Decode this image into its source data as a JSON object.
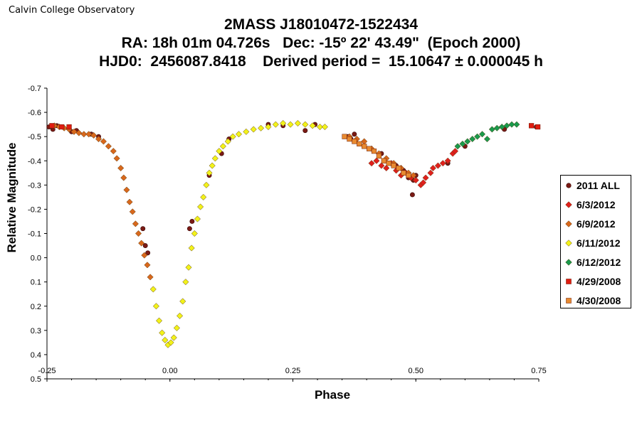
{
  "header": {
    "observatory": "Calvin College Observatory",
    "title_line1": "2MASS J18010472-1522434",
    "title_line2": "RA: 18h 01m 04.726s   Dec: -15º 22' 43.49\"  (Epoch 2000)",
    "title_line3": "HJD0:  2456087.8418    Derived period =  15.10647 ± 0.000045 h"
  },
  "chart_data": {
    "type": "scatter",
    "xlabel": "Phase",
    "ylabel": "Relative Magnitude",
    "xlim": [
      -0.25,
      0.75
    ],
    "ylim": [
      -0.7,
      0.5
    ],
    "y_inverted": true,
    "grid": false,
    "legend_position": "right",
    "x_ticks": [
      "-0.25",
      "0.00",
      "0.25",
      "0.50",
      "0.75"
    ],
    "y_ticks": [
      "-0.7",
      "-0.6",
      "-0.5",
      "-0.4",
      "-0.3",
      "-0.2",
      "-0.1",
      "0.0",
      "0.1",
      "0.2",
      "0.3",
      "0.4",
      "0.5"
    ],
    "series": [
      {
        "name": "2011 ALL",
        "marker": "circle",
        "color": "#7a1a14",
        "points": [
          [
            -0.246,
            -0.54
          ],
          [
            -0.238,
            -0.53
          ],
          [
            -0.23,
            -0.545
          ],
          [
            -0.2,
            -0.52
          ],
          [
            -0.19,
            -0.525
          ],
          [
            -0.16,
            -0.51
          ],
          [
            -0.145,
            -0.5
          ],
          [
            -0.055,
            -0.12
          ],
          [
            -0.05,
            -0.05
          ],
          [
            -0.045,
            -0.02
          ],
          [
            0.04,
            -0.12
          ],
          [
            0.045,
            -0.15
          ],
          [
            0.08,
            -0.34
          ],
          [
            0.105,
            -0.43
          ],
          [
            0.12,
            -0.49
          ],
          [
            0.2,
            -0.55
          ],
          [
            0.23,
            -0.545
          ],
          [
            0.275,
            -0.525
          ],
          [
            0.295,
            -0.55
          ],
          [
            0.362,
            -0.5
          ],
          [
            0.368,
            -0.49
          ],
          [
            0.375,
            -0.51
          ],
          [
            0.43,
            -0.43
          ],
          [
            0.46,
            -0.38
          ],
          [
            0.475,
            -0.36
          ],
          [
            0.485,
            -0.33
          ],
          [
            0.495,
            -0.32
          ],
          [
            0.5,
            -0.34
          ],
          [
            0.493,
            -0.26
          ],
          [
            0.565,
            -0.39
          ],
          [
            0.6,
            -0.46
          ],
          [
            0.68,
            -0.53
          ],
          [
            0.745,
            -0.54
          ]
        ]
      },
      {
        "name": "6/3/2012",
        "marker": "diamond",
        "color": "#e0201c",
        "points": [
          [
            0.41,
            -0.39
          ],
          [
            0.42,
            -0.4
          ],
          [
            0.43,
            -0.38
          ],
          [
            0.44,
            -0.37
          ],
          [
            0.45,
            -0.39
          ],
          [
            0.46,
            -0.36
          ],
          [
            0.47,
            -0.34
          ],
          [
            0.48,
            -0.35
          ],
          [
            0.49,
            -0.33
          ],
          [
            0.5,
            -0.32
          ],
          [
            0.51,
            -0.3
          ],
          [
            0.515,
            -0.31
          ],
          [
            0.52,
            -0.33
          ],
          [
            0.53,
            -0.35
          ],
          [
            0.535,
            -0.37
          ],
          [
            0.545,
            -0.38
          ],
          [
            0.555,
            -0.39
          ],
          [
            0.565,
            -0.4
          ],
          [
            0.575,
            -0.43
          ],
          [
            0.58,
            -0.44
          ]
        ]
      },
      {
        "name": "6/9/2012",
        "marker": "diamond",
        "color": "#d8681c",
        "points": [
          [
            -0.235,
            -0.545
          ],
          [
            -0.225,
            -0.54
          ],
          [
            -0.215,
            -0.535
          ],
          [
            -0.205,
            -0.53
          ],
          [
            -0.195,
            -0.52
          ],
          [
            -0.185,
            -0.515
          ],
          [
            -0.175,
            -0.51
          ],
          [
            -0.165,
            -0.51
          ],
          [
            -0.155,
            -0.505
          ],
          [
            -0.145,
            -0.49
          ],
          [
            -0.135,
            -0.48
          ],
          [
            -0.125,
            -0.46
          ],
          [
            -0.115,
            -0.44
          ],
          [
            -0.108,
            -0.41
          ],
          [
            -0.1,
            -0.37
          ],
          [
            -0.094,
            -0.33
          ],
          [
            -0.088,
            -0.28
          ],
          [
            -0.082,
            -0.23
          ],
          [
            -0.076,
            -0.19
          ],
          [
            -0.07,
            -0.14
          ],
          [
            -0.064,
            -0.1
          ],
          [
            -0.058,
            -0.06
          ],
          [
            -0.052,
            -0.01
          ],
          [
            -0.046,
            0.03
          ],
          [
            -0.04,
            0.08
          ],
          [
            0.365,
            -0.5
          ],
          [
            0.38,
            -0.49
          ],
          [
            0.395,
            -0.48
          ],
          [
            0.41,
            -0.45
          ],
          [
            0.425,
            -0.43
          ],
          [
            0.44,
            -0.41
          ],
          [
            0.455,
            -0.39
          ],
          [
            0.47,
            -0.37
          ],
          [
            0.485,
            -0.35
          ],
          [
            0.495,
            -0.34
          ]
        ]
      },
      {
        "name": "6/11/2012",
        "marker": "diamond",
        "color": "#f2f21a",
        "points": [
          [
            -0.034,
            0.13
          ],
          [
            -0.028,
            0.2
          ],
          [
            -0.022,
            0.26
          ],
          [
            -0.016,
            0.31
          ],
          [
            -0.01,
            0.34
          ],
          [
            -0.004,
            0.36
          ],
          [
            0.002,
            0.35
          ],
          [
            0.008,
            0.33
          ],
          [
            0.014,
            0.29
          ],
          [
            0.02,
            0.24
          ],
          [
            0.026,
            0.18
          ],
          [
            0.032,
            0.1
          ],
          [
            0.038,
            0.04
          ],
          [
            0.044,
            -0.04
          ],
          [
            0.05,
            -0.1
          ],
          [
            0.056,
            -0.16
          ],
          [
            0.062,
            -0.21
          ],
          [
            0.068,
            -0.25
          ],
          [
            0.074,
            -0.3
          ],
          [
            0.08,
            -0.35
          ],
          [
            0.086,
            -0.38
          ],
          [
            0.092,
            -0.41
          ],
          [
            0.1,
            -0.44
          ],
          [
            0.108,
            -0.46
          ],
          [
            0.118,
            -0.48
          ],
          [
            0.128,
            -0.5
          ],
          [
            0.14,
            -0.51
          ],
          [
            0.155,
            -0.52
          ],
          [
            0.17,
            -0.53
          ],
          [
            0.185,
            -0.535
          ],
          [
            0.2,
            -0.54
          ],
          [
            0.215,
            -0.55
          ],
          [
            0.23,
            -0.555
          ],
          [
            0.245,
            -0.55
          ],
          [
            0.26,
            -0.555
          ],
          [
            0.275,
            -0.55
          ],
          [
            0.29,
            -0.545
          ],
          [
            0.305,
            -0.54
          ],
          [
            0.315,
            -0.54
          ]
        ]
      },
      {
        "name": "6/12/2012",
        "marker": "diamond",
        "color": "#1a9a4c",
        "points": [
          [
            0.585,
            -0.46
          ],
          [
            0.595,
            -0.47
          ],
          [
            0.605,
            -0.48
          ],
          [
            0.615,
            -0.49
          ],
          [
            0.625,
            -0.5
          ],
          [
            0.635,
            -0.51
          ],
          [
            0.645,
            -0.49
          ],
          [
            0.655,
            -0.53
          ],
          [
            0.665,
            -0.535
          ],
          [
            0.675,
            -0.54
          ],
          [
            0.685,
            -0.545
          ],
          [
            0.695,
            -0.55
          ],
          [
            0.705,
            -0.55
          ]
        ]
      },
      {
        "name": "4/29/2008",
        "marker": "square",
        "color": "#e01c10",
        "points": [
          [
            -0.24,
            -0.545
          ],
          [
            -0.22,
            -0.54
          ],
          [
            -0.205,
            -0.54
          ],
          [
            0.735,
            -0.545
          ],
          [
            0.748,
            -0.54
          ]
        ]
      },
      {
        "name": "4/30/2008",
        "marker": "square",
        "color": "#e88a30",
        "points": [
          [
            0.355,
            -0.5
          ],
          [
            0.365,
            -0.49
          ],
          [
            0.375,
            -0.48
          ],
          [
            0.385,
            -0.47
          ],
          [
            0.395,
            -0.46
          ],
          [
            0.405,
            -0.45
          ],
          [
            0.415,
            -0.44
          ],
          [
            0.425,
            -0.42
          ],
          [
            0.435,
            -0.4
          ],
          [
            0.445,
            -0.39
          ],
          [
            0.455,
            -0.38
          ],
          [
            0.465,
            -0.37
          ],
          [
            0.475,
            -0.35
          ],
          [
            0.485,
            -0.34
          ]
        ]
      }
    ]
  }
}
